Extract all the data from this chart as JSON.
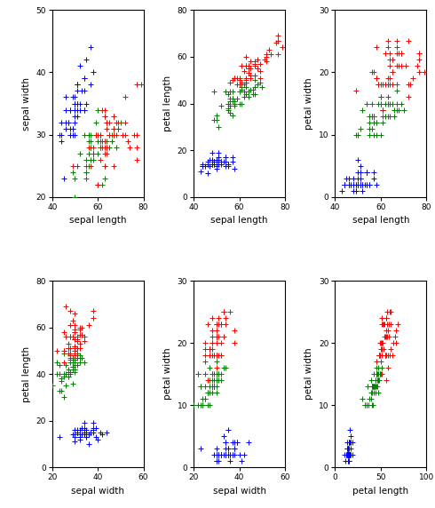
{
  "subplots": [
    {
      "xlabel": "sepal length",
      "ylabel": "sepal width",
      "xlim": [
        40,
        80
      ],
      "ylim": [
        20,
        50
      ],
      "xticks": [
        40,
        60,
        80
      ],
      "yticks": [
        20,
        30,
        40,
        50
      ]
    },
    {
      "xlabel": "sepal length",
      "ylabel": "petal length",
      "xlim": [
        40,
        80
      ],
      "ylim": [
        0,
        80
      ],
      "xticks": [
        40,
        60,
        80
      ],
      "yticks": [
        0,
        20,
        40,
        60,
        80
      ]
    },
    {
      "xlabel": "sepal length",
      "ylabel": "petal width",
      "xlim": [
        40,
        80
      ],
      "ylim": [
        0,
        30
      ],
      "xticks": [
        40,
        60,
        80
      ],
      "yticks": [
        0,
        10,
        20,
        30
      ]
    },
    {
      "xlabel": "sepal width",
      "ylabel": "petal length",
      "xlim": [
        20,
        60
      ],
      "ylim": [
        0,
        80
      ],
      "xticks": [
        20,
        40,
        60
      ],
      "yticks": [
        0,
        20,
        40,
        60,
        80
      ]
    },
    {
      "xlabel": "sepal width",
      "ylabel": "petal width",
      "xlim": [
        20,
        60
      ],
      "ylim": [
        0,
        30
      ],
      "xticks": [
        20,
        40,
        60
      ],
      "yticks": [
        0,
        10,
        20,
        30
      ]
    },
    {
      "xlabel": "petal length",
      "ylabel": "petal width",
      "xlim": [
        0,
        100
      ],
      "ylim": [
        0,
        30
      ],
      "xticks": [
        0,
        50,
        100
      ],
      "yticks": [
        0,
        10,
        20,
        30
      ]
    }
  ],
  "colors": [
    "blue",
    "green",
    "red"
  ],
  "label_fontsize": 7.5,
  "tick_fontsize": 6.5,
  "marker_size": 18,
  "linewidths": 0.7,
  "scale": 10
}
